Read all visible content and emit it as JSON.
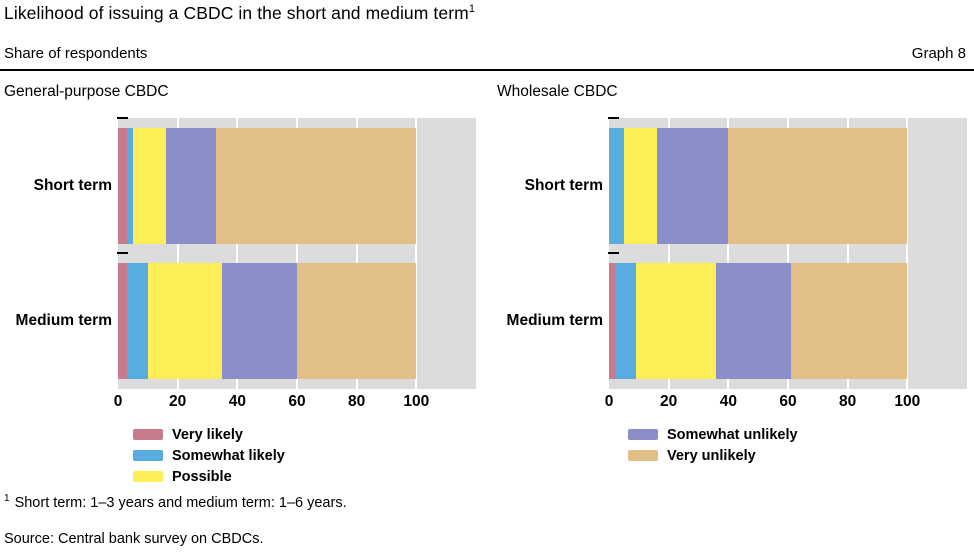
{
  "header": {
    "title": "Likelihood of issuing a CBDC in the short and medium term",
    "title_marker": "1",
    "subtitle_left": "Share of respondents",
    "graph_label": "Graph 8"
  },
  "chart_data": [
    {
      "type": "bar",
      "orientation": "horizontal-stacked",
      "title": "General-purpose CBDC",
      "categories": [
        "Short term",
        "Medium term"
      ],
      "series": [
        {
          "name": "Very likely",
          "color": "#c87b8c",
          "values": [
            3,
            3
          ]
        },
        {
          "name": "Somewhat likely",
          "color": "#59ace0",
          "values": [
            2,
            7
          ]
        },
        {
          "name": "Possible",
          "color": "#fdee57",
          "values": [
            11,
            25
          ]
        },
        {
          "name": "Somewhat unlikely",
          "color": "#8a8fc9",
          "values": [
            17,
            25
          ]
        },
        {
          "name": "Very unlikely",
          "color": "#e3bf88",
          "values": [
            67,
            40
          ]
        }
      ],
      "xticks": [
        0,
        20,
        40,
        60,
        80,
        100
      ],
      "xlim": [
        0,
        120
      ],
      "unit": "percent",
      "plot_background": "#dcdcdc",
      "grid": "vertical-white",
      "legend_indices": [
        0,
        1,
        2
      ],
      "legend_position": "below"
    },
    {
      "type": "bar",
      "orientation": "horizontal-stacked",
      "title": "Wholesale CBDC",
      "categories": [
        "Short term",
        "Medium term"
      ],
      "series": [
        {
          "name": "Very likely",
          "color": "#c87b8c",
          "values": [
            0,
            2
          ]
        },
        {
          "name": "Somewhat likely",
          "color": "#59ace0",
          "values": [
            5,
            7
          ]
        },
        {
          "name": "Possible",
          "color": "#fdee57",
          "values": [
            11,
            27
          ]
        },
        {
          "name": "Somewhat unlikely",
          "color": "#8a8fc9",
          "values": [
            24,
            25
          ]
        },
        {
          "name": "Very unlikely",
          "color": "#e3bf88",
          "values": [
            60,
            39
          ]
        }
      ],
      "xticks": [
        0,
        20,
        40,
        60,
        80,
        100
      ],
      "xlim": [
        0,
        120
      ],
      "unit": "percent",
      "plot_background": "#dcdcdc",
      "grid": "vertical-white",
      "legend_indices": [
        3,
        4
      ],
      "legend_position": "below"
    }
  ],
  "footnote": {
    "marker": "1",
    "text": "Short term: 1–3 years and medium term: 1–6 years."
  },
  "source_line": "Source: Central bank survey on CBDCs."
}
